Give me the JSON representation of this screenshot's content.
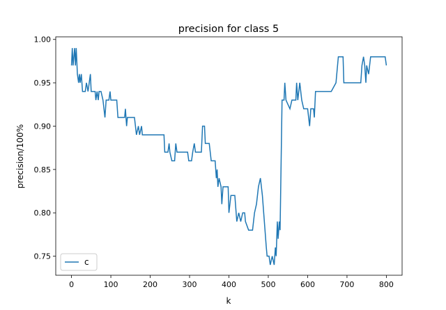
{
  "chart_data": {
    "type": "line",
    "title": "precision for class 5",
    "x_label": "k",
    "y_label": "precision/100%",
    "x": [
      0,
      2,
      4,
      6,
      8,
      10,
      12,
      15,
      18,
      20,
      22,
      25,
      28,
      35,
      38,
      42,
      45,
      48,
      50,
      60,
      62,
      65,
      68,
      70,
      75,
      80,
      85,
      88,
      95,
      98,
      100,
      115,
      118,
      135,
      137,
      140,
      142,
      155,
      160,
      165,
      170,
      173,
      178,
      180,
      235,
      237,
      245,
      248,
      250,
      255,
      262,
      265,
      268,
      295,
      298,
      305,
      308,
      312,
      315,
      330,
      333,
      338,
      340,
      350,
      355,
      365,
      368,
      370,
      372,
      375,
      380,
      382,
      385,
      398,
      400,
      405,
      415,
      420,
      425,
      430,
      435,
      440,
      442,
      450,
      460,
      465,
      470,
      475,
      480,
      485,
      490,
      495,
      497,
      502,
      505,
      510,
      515,
      518,
      520,
      523,
      525,
      528,
      530,
      535,
      540,
      542,
      545,
      555,
      560,
      570,
      572,
      575,
      580,
      585,
      590,
      600,
      605,
      608,
      615,
      617,
      620,
      660,
      672,
      678,
      690,
      692,
      735,
      738,
      742,
      745,
      748,
      750,
      755,
      760,
      797,
      800
    ],
    "series": [
      {
        "name": "c",
        "color": "#1f77b4",
        "values": [
          0.97,
          0.99,
          0.97,
          0.98,
          0.99,
          0.97,
          0.99,
          0.96,
          0.95,
          0.96,
          0.95,
          0.96,
          0.94,
          0.94,
          0.95,
          0.94,
          0.95,
          0.96,
          0.94,
          0.94,
          0.93,
          0.94,
          0.93,
          0.94,
          0.94,
          0.93,
          0.91,
          0.93,
          0.93,
          0.94,
          0.93,
          0.93,
          0.91,
          0.91,
          0.92,
          0.9,
          0.91,
          0.91,
          0.91,
          0.89,
          0.9,
          0.89,
          0.9,
          0.89,
          0.89,
          0.87,
          0.87,
          0.88,
          0.87,
          0.86,
          0.86,
          0.88,
          0.87,
          0.87,
          0.86,
          0.86,
          0.87,
          0.88,
          0.87,
          0.87,
          0.9,
          0.9,
          0.88,
          0.88,
          0.86,
          0.86,
          0.84,
          0.85,
          0.83,
          0.84,
          0.83,
          0.81,
          0.83,
          0.83,
          0.8,
          0.82,
          0.82,
          0.79,
          0.8,
          0.79,
          0.8,
          0.8,
          0.79,
          0.78,
          0.78,
          0.8,
          0.81,
          0.83,
          0.84,
          0.82,
          0.79,
          0.76,
          0.75,
          0.75,
          0.74,
          0.75,
          0.74,
          0.76,
          0.75,
          0.79,
          0.77,
          0.79,
          0.78,
          0.93,
          0.93,
          0.95,
          0.93,
          0.92,
          0.93,
          0.93,
          0.95,
          0.93,
          0.95,
          0.93,
          0.92,
          0.92,
          0.9,
          0.92,
          0.92,
          0.91,
          0.94,
          0.94,
          0.95,
          0.98,
          0.98,
          0.95,
          0.95,
          0.97,
          0.98,
          0.97,
          0.95,
          0.97,
          0.96,
          0.98,
          0.98,
          0.97
        ]
      }
    ],
    "xlim": [
      -40,
      840
    ],
    "ylim": [
      0.728,
      1.003
    ],
    "xticks": [
      0,
      100,
      200,
      300,
      400,
      500,
      600,
      700,
      800
    ],
    "yticks": [
      0.75,
      {
        "value": 0.8,
        "label": "0.80"
      },
      0.85,
      {
        "value": 0.9,
        "label": "0.90"
      },
      0.95,
      {
        "value": 1.0,
        "label": "1.00"
      }
    ],
    "legend": "lower left"
  }
}
